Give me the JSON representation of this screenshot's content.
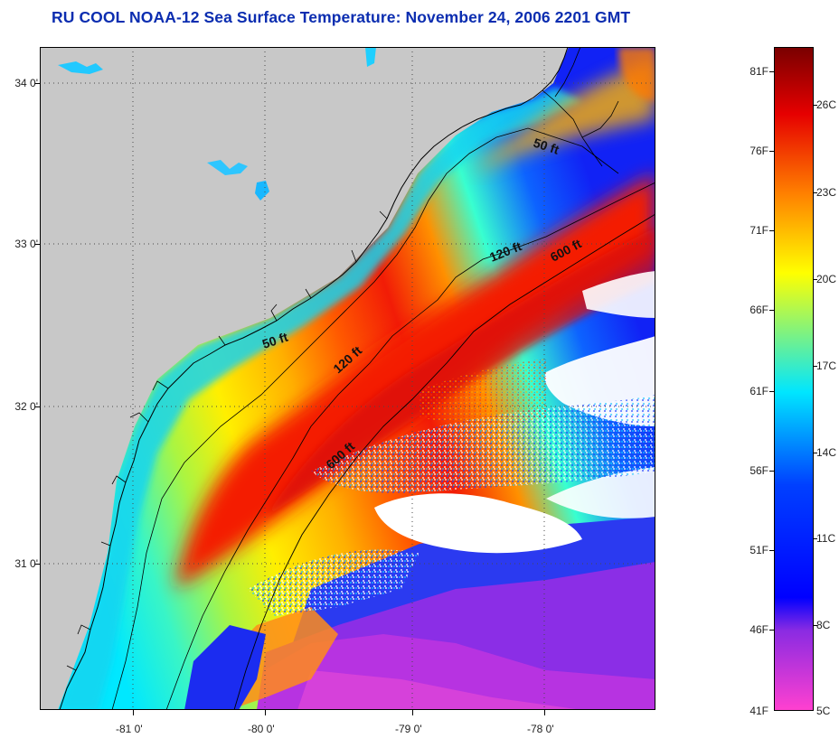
{
  "title": "RU COOL  NOAA-12  Sea Surface Temperature:  November 24, 2006 2201 GMT",
  "map": {
    "latitude_labels": [
      "34 0'",
      "33 0'",
      "32 0'",
      "31 0'"
    ],
    "longitude_labels": [
      "-81 0'",
      "-80 0'",
      "-79 0'",
      "-78 0'"
    ],
    "isobaths": [
      {
        "label": "50 ft"
      },
      {
        "label": "120 ft"
      },
      {
        "label": "600 ft"
      },
      {
        "label": "50 ft"
      },
      {
        "label": "120 ft"
      },
      {
        "label": "600 ft"
      }
    ],
    "colors": {
      "land": "#c8c8c8",
      "no_data_clouds": "#ffffff",
      "coastline": "#000000",
      "graticule": "#4a4a4a"
    }
  },
  "colorbar": {
    "fahrenheit_labels": [
      "81F",
      "76F",
      "71F",
      "66F",
      "61F",
      "56F",
      "51F",
      "46F",
      "41F"
    ],
    "celsius_labels": [
      "26C",
      "23C",
      "20C",
      "17C",
      "14C",
      "11C",
      "8C",
      "5C"
    ],
    "colors": [
      "#7a0000",
      "#e60000",
      "#ff8000",
      "#ffff00",
      "#00e6ff",
      "#0040ff",
      "#0000ff",
      "#8a2be2",
      "#ff40d0"
    ]
  }
}
